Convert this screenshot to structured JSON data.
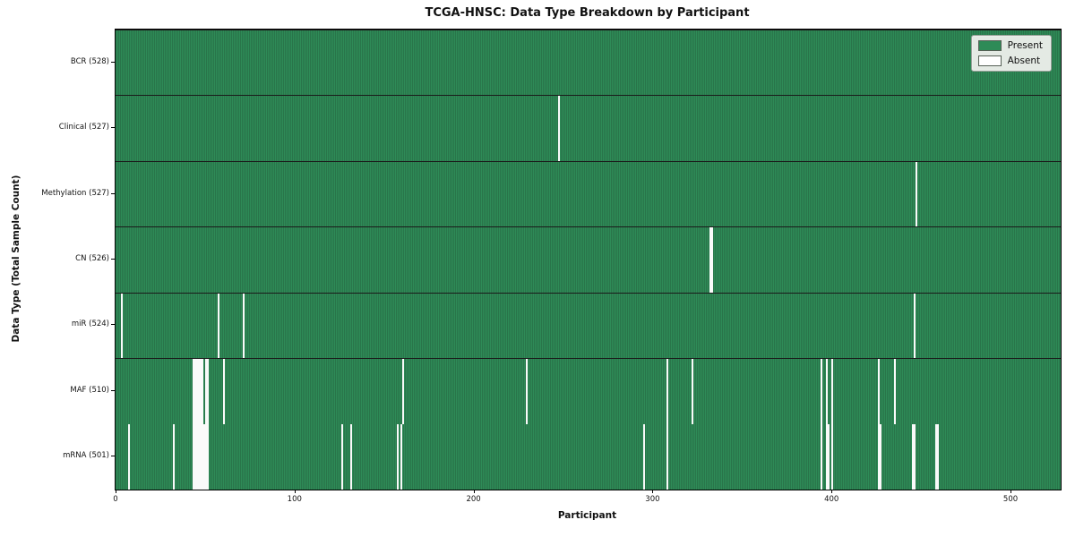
{
  "title": "TCGA-HNSC: Data Type Breakdown by Participant",
  "chart_data": {
    "type": "heatmap",
    "title": "TCGA-HNSC: Data Type Breakdown by Participant",
    "xlabel": "Participant",
    "ylabel": "Data Type (Total Sample Count)",
    "total_participants": 528,
    "x_ticks": [
      0,
      100,
      200,
      300,
      400,
      500
    ],
    "legend_position": "upper right",
    "grid": false,
    "legend": [
      {
        "label": "Present",
        "color": "#2e8b57"
      },
      {
        "label": "Absent",
        "color": "#ffffff"
      }
    ],
    "rows": [
      {
        "name": "BCR",
        "label": "BCR (528)",
        "present_count": 528,
        "absent_participants": []
      },
      {
        "name": "Clinical",
        "label": "Clinical (527)",
        "present_count": 527,
        "absent_participants": [
          247
        ]
      },
      {
        "name": "Methylation",
        "label": "Methylation (527)",
        "present_count": 527,
        "absent_participants": [
          447
        ]
      },
      {
        "name": "CN",
        "label": "CN (526)",
        "present_count": 526,
        "absent_participants": [
          332,
          333
        ]
      },
      {
        "name": "miR",
        "label": "miR (524)",
        "present_count": 524,
        "absent_participants": [
          3,
          57,
          71,
          446
        ]
      },
      {
        "name": "MAF",
        "label": "MAF (510)",
        "present_count": 510,
        "absent_participants": [
          43,
          44,
          45,
          46,
          47,
          48,
          50,
          51,
          60,
          160,
          229,
          308,
          322,
          394,
          397,
          400,
          426,
          435
        ]
      },
      {
        "name": "mRNA",
        "label": "mRNA (501)",
        "present_count": 501,
        "absent_participants": [
          7,
          32,
          43,
          44,
          45,
          46,
          47,
          48,
          49,
          50,
          51,
          126,
          131,
          157,
          159,
          295,
          308,
          394,
          397,
          398,
          400,
          426,
          427,
          445,
          446,
          458,
          459
        ]
      }
    ],
    "colors": {
      "present": "#2e8b57",
      "present_stripe_dark": "#245f3e",
      "absent": "#fafafa",
      "row_border": "#1a1a1a",
      "legend_bg": "#e4eae4"
    }
  }
}
